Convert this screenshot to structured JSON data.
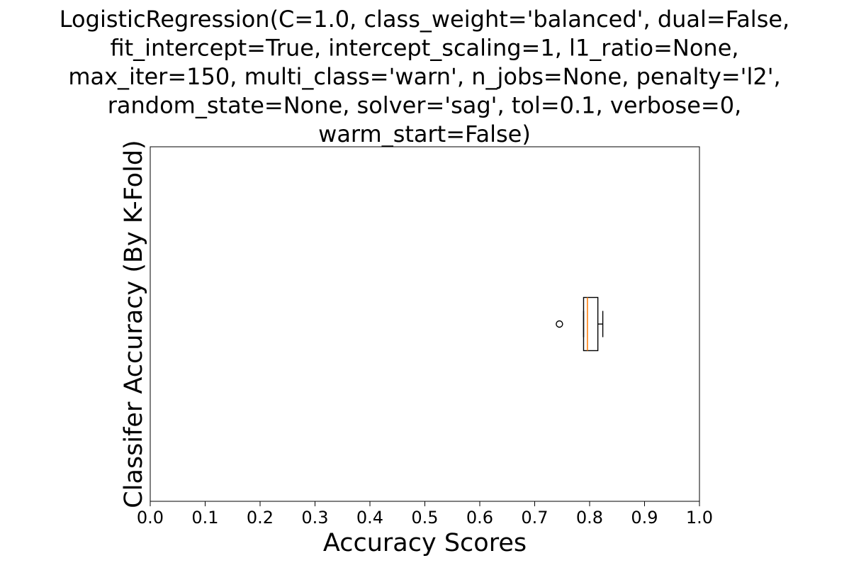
{
  "chart_data": {
    "type": "boxplot",
    "orientation": "horizontal",
    "title_lines": [
      "LogisticRegression(C=1.0, class_weight='balanced', dual=False,",
      "fit_intercept=True, intercept_scaling=1, l1_ratio=None,",
      "max_iter=150, multi_class='warn', n_jobs=None, penalty='l2',",
      "random_state=None, solver='sag', tol=0.1, verbose=0,",
      "warm_start=False)"
    ],
    "xlabel": "Accuracy Scores",
    "ylabel": "Classifer Accuracy (By K-Fold)",
    "xlim": [
      0.0,
      1.0
    ],
    "xticks": [
      "0.0",
      "0.1",
      "0.2",
      "0.3",
      "0.4",
      "0.5",
      "0.6",
      "0.7",
      "0.8",
      "0.9",
      "1.0"
    ],
    "box": {
      "whisker_low": 0.789,
      "q1": 0.789,
      "median": 0.796,
      "q3": 0.815,
      "whisker_high": 0.824,
      "outliers": [
        0.745
      ]
    },
    "grid": false,
    "colors": {
      "median": "#ff7f0e",
      "box": "#000000"
    }
  }
}
